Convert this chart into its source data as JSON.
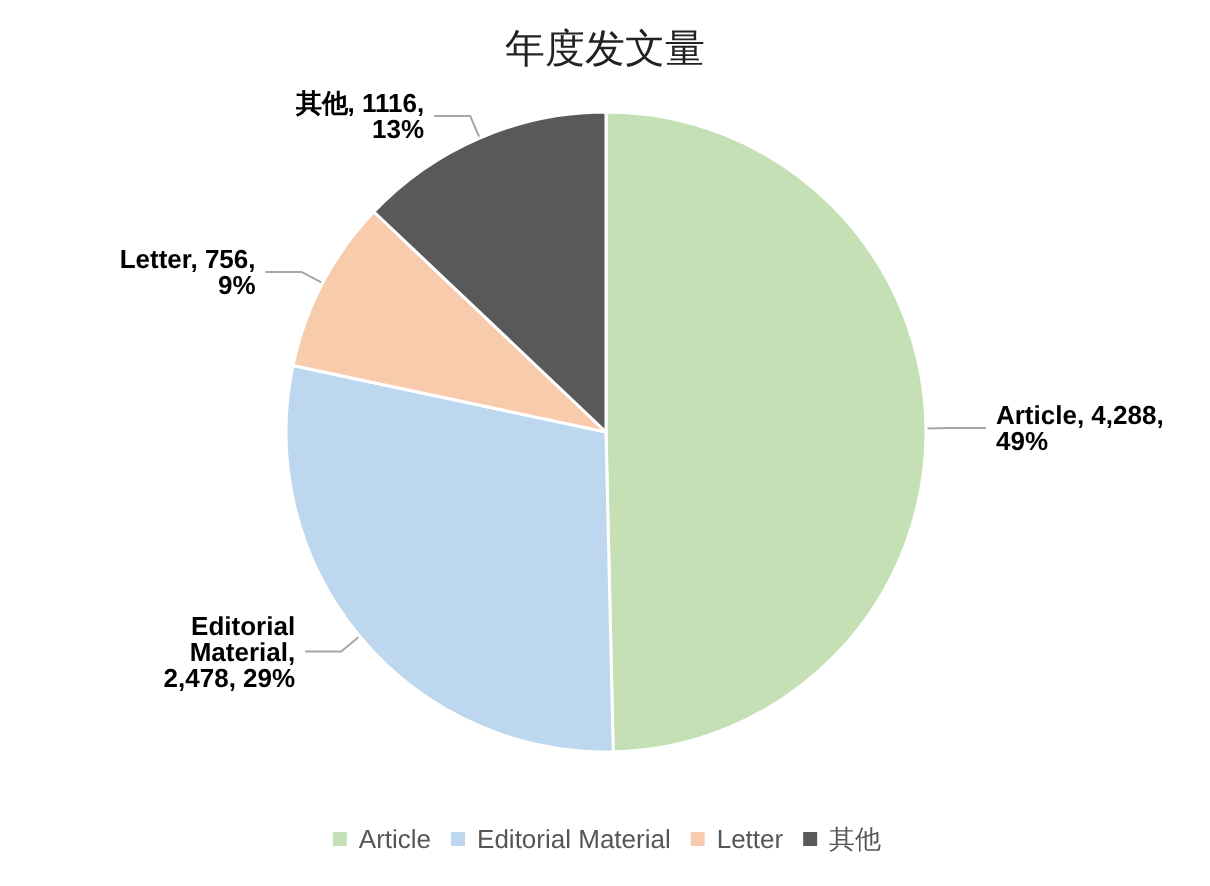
{
  "chart_data": {
    "type": "pie",
    "title": "年度发文量",
    "categories": [
      "Article",
      "Editorial Material",
      "Letter",
      "其他"
    ],
    "values": [
      4288,
      2478,
      756,
      1116
    ],
    "value_labels": [
      "Article, 4,288,\n49%",
      "Editorial\nMaterial,\n2,478, 29%",
      "Letter, 756,\n9%",
      "其他, 1116,\n13%"
    ],
    "colors": [
      "#c5e0b4",
      "#bdd7ee",
      "#f8cbad",
      "#595959"
    ],
    "legend": "bottom"
  }
}
